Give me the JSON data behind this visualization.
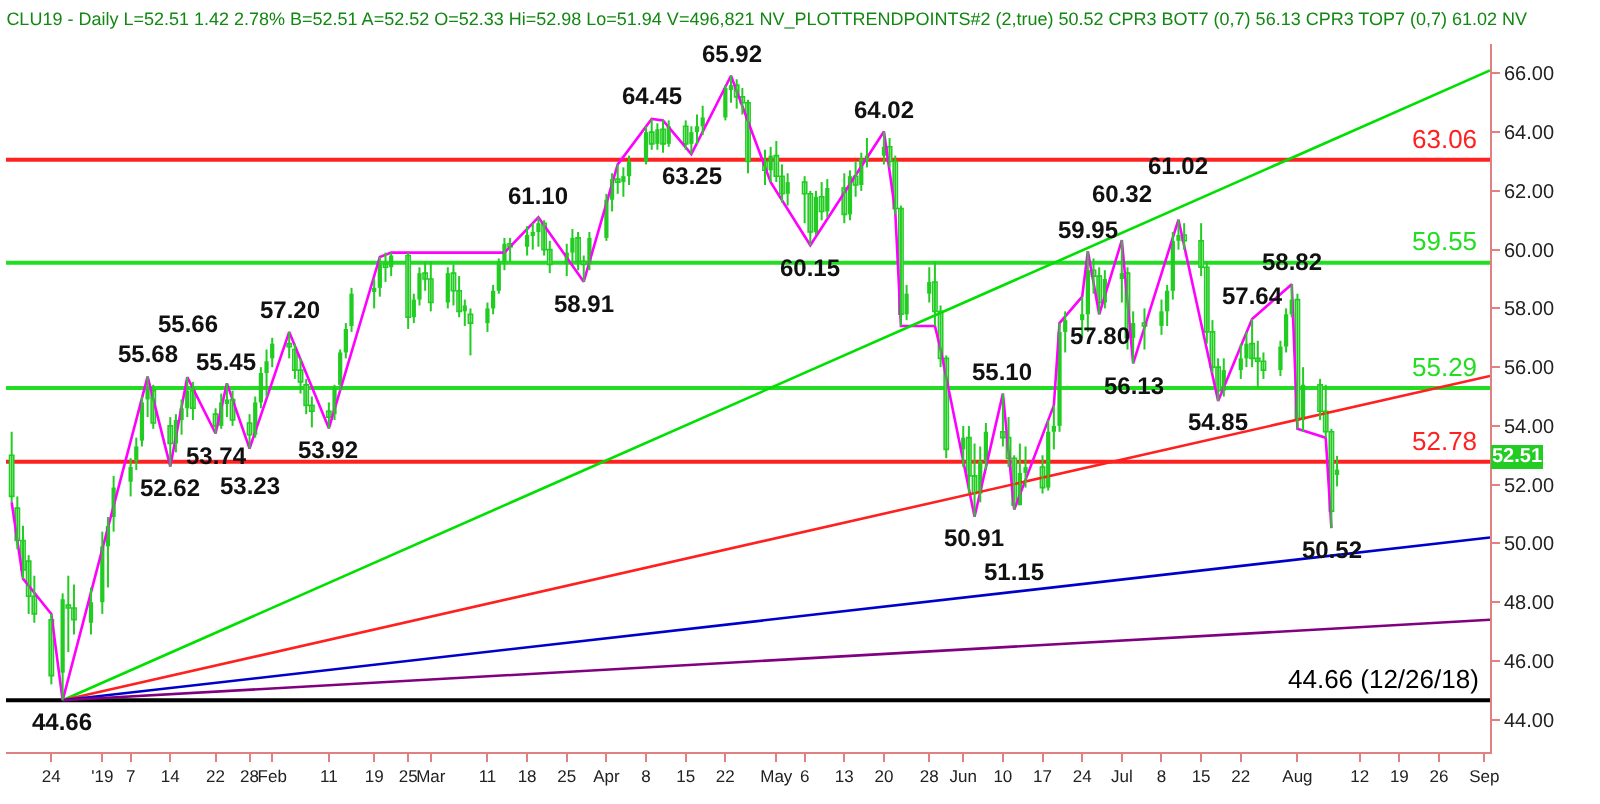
{
  "chart_data": {
    "type": "candlestick",
    "title": "CLU19 - Daily L=52.51 1.42 2.78% B=52.51 A=52.52 O=52.33 Hi=52.98 Lo=51.94 V=496,821 NV_PLOTTRENDPOINTS#2 (2,true) 50.52 CPR3 BOT7 (0,7) 56.13 CPR3 TOP7 (0,7) 61.02 NV",
    "color": "#22cc22",
    "x": [
      "2018-12-17",
      "2018-12-18",
      "2018-12-19",
      "2018-12-20",
      "2018-12-21",
      "2018-12-24",
      "2018-12-26",
      "2018-12-27",
      "2018-12-28",
      "2018-12-31",
      "2019-01-02",
      "2019-01-03",
      "2019-01-04",
      "2019-01-07",
      "2019-01-08",
      "2019-01-09",
      "2019-01-10",
      "2019-01-11",
      "2019-01-14",
      "2019-01-15",
      "2019-01-16",
      "2019-01-17",
      "2019-01-18",
      "2019-01-22",
      "2019-01-23",
      "2019-01-24",
      "2019-01-25",
      "2019-01-28",
      "2019-01-29",
      "2019-01-30",
      "2019-01-31",
      "2019-02-01",
      "2019-02-04",
      "2019-02-05",
      "2019-02-06",
      "2019-02-07",
      "2019-02-08",
      "2019-02-11",
      "2019-02-12",
      "2019-02-13",
      "2019-02-14",
      "2019-02-15",
      "2019-02-19",
      "2019-02-20",
      "2019-02-21",
      "2019-02-22",
      "2019-02-25",
      "2019-02-26",
      "2019-02-27",
      "2019-02-28",
      "2019-03-01",
      "2019-03-04",
      "2019-03-05",
      "2019-03-06",
      "2019-03-07",
      "2019-03-08",
      "2019-03-11",
      "2019-03-12",
      "2019-03-13",
      "2019-03-14",
      "2019-03-15",
      "2019-03-18",
      "2019-03-19",
      "2019-03-20",
      "2019-03-21",
      "2019-03-22",
      "2019-03-25",
      "2019-03-26",
      "2019-03-27",
      "2019-03-28",
      "2019-03-29",
      "2019-04-01",
      "2019-04-02",
      "2019-04-03",
      "2019-04-04",
      "2019-04-05",
      "2019-04-08",
      "2019-04-09",
      "2019-04-10",
      "2019-04-11",
      "2019-04-12",
      "2019-04-15",
      "2019-04-16",
      "2019-04-17",
      "2019-04-18",
      "2019-04-22",
      "2019-04-23",
      "2019-04-24",
      "2019-04-25",
      "2019-04-26",
      "2019-04-29",
      "2019-04-30",
      "2019-05-01",
      "2019-05-02",
      "2019-05-03",
      "2019-05-06",
      "2019-05-07",
      "2019-05-08",
      "2019-05-09",
      "2019-05-10",
      "2019-05-13",
      "2019-05-14",
      "2019-05-15",
      "2019-05-16",
      "2019-05-17",
      "2019-05-20",
      "2019-05-21",
      "2019-05-22",
      "2019-05-23",
      "2019-05-24",
      "2019-05-28",
      "2019-05-29",
      "2019-05-30",
      "2019-05-31",
      "2019-06-03",
      "2019-06-04",
      "2019-06-05",
      "2019-06-06",
      "2019-06-07",
      "2019-06-10",
      "2019-06-11",
      "2019-06-12",
      "2019-06-13",
      "2019-06-14",
      "2019-06-17",
      "2019-06-18",
      "2019-06-19",
      "2019-06-20",
      "2019-06-21",
      "2019-06-24",
      "2019-06-25",
      "2019-06-26",
      "2019-06-27",
      "2019-06-28",
      "2019-07-01",
      "2019-07-02",
      "2019-07-03",
      "2019-07-05",
      "2019-07-08",
      "2019-07-09",
      "2019-07-10",
      "2019-07-11",
      "2019-07-12",
      "2019-07-15",
      "2019-07-16",
      "2019-07-17",
      "2019-07-18",
      "2019-07-19",
      "2019-07-22",
      "2019-07-23",
      "2019-07-24",
      "2019-07-25",
      "2019-07-26",
      "2019-07-29",
      "2019-07-30",
      "2019-07-31",
      "2019-08-01",
      "2019-08-02",
      "2019-08-05",
      "2019-08-06",
      "2019-08-07",
      "2019-08-08"
    ],
    "ohlc": [
      [
        53.0,
        53.8,
        51.4,
        51.6
      ],
      [
        51.2,
        51.6,
        49.8,
        50.1
      ],
      [
        50.1,
        50.6,
        48.8,
        49.1
      ],
      [
        49.4,
        49.6,
        47.6,
        48.2
      ],
      [
        48.2,
        48.9,
        47.3,
        47.6
      ],
      [
        47.4,
        47.6,
        45.2,
        45.5
      ],
      [
        45.6,
        48.3,
        44.66,
        48.1
      ],
      [
        47.9,
        48.9,
        46.3,
        47.8
      ],
      [
        47.8,
        48.6,
        46.9,
        47.4
      ],
      [
        47.3,
        48.5,
        46.9,
        48.0
      ],
      [
        48.0,
        50.4,
        47.6,
        49.9
      ],
      [
        49.9,
        50.9,
        48.5,
        50.6
      ],
      [
        50.9,
        52.3,
        50.4,
        51.9
      ],
      [
        52.1,
        52.9,
        51.6,
        52.6
      ],
      [
        52.8,
        53.6,
        52.5,
        53.3
      ],
      [
        53.5,
        55.0,
        53.3,
        54.8
      ],
      [
        54.9,
        55.68,
        54.3,
        55.3
      ],
      [
        55.2,
        55.4,
        53.9,
        54.1
      ],
      [
        54.0,
        54.3,
        52.62,
        53.4
      ],
      [
        53.4,
        54.4,
        53.1,
        54.2
      ],
      [
        54.2,
        54.9,
        53.7,
        54.6
      ],
      [
        54.6,
        55.66,
        54.3,
        55.2
      ],
      [
        55.2,
        55.5,
        54.2,
        54.6
      ],
      [
        54.4,
        54.6,
        53.74,
        54.0
      ],
      [
        54.0,
        55.1,
        53.9,
        54.8
      ],
      [
        54.8,
        55.45,
        54.3,
        54.9
      ],
      [
        54.9,
        55.2,
        54.0,
        54.2
      ],
      [
        54.1,
        54.4,
        53.23,
        53.7
      ],
      [
        53.7,
        55.0,
        53.6,
        54.8
      ],
      [
        54.8,
        56.0,
        54.6,
        55.8
      ],
      [
        55.8,
        56.6,
        55.0,
        56.2
      ],
      [
        56.3,
        57.0,
        56.0,
        56.8
      ],
      [
        56.8,
        57.2,
        56.3,
        56.7
      ],
      [
        56.6,
        56.8,
        55.6,
        55.9
      ],
      [
        55.9,
        56.3,
        55.1,
        55.5
      ],
      [
        55.4,
        55.6,
        54.4,
        54.7
      ],
      [
        54.7,
        55.0,
        53.95,
        54.5
      ],
      [
        54.5,
        54.8,
        53.92,
        54.3
      ],
      [
        54.4,
        55.4,
        54.2,
        55.3
      ],
      [
        55.4,
        56.6,
        55.2,
        56.5
      ],
      [
        56.5,
        57.5,
        56.3,
        57.3
      ],
      [
        57.4,
        58.7,
        57.2,
        58.5
      ],
      [
        58.6,
        59.0,
        58.0,
        58.7
      ],
      [
        58.7,
        59.75,
        58.4,
        59.5
      ],
      [
        59.5,
        59.9,
        58.9,
        59.4
      ],
      [
        59.4,
        59.9,
        59.1,
        59.8
      ],
      [
        59.8,
        59.9,
        57.3,
        57.7
      ],
      [
        57.7,
        58.5,
        57.5,
        58.3
      ],
      [
        58.3,
        59.4,
        58.1,
        59.2
      ],
      [
        59.2,
        59.6,
        58.6,
        59.0
      ],
      [
        59.0,
        59.6,
        57.9,
        58.2
      ],
      [
        58.2,
        59.4,
        58.0,
        59.2
      ],
      [
        59.2,
        59.5,
        58.1,
        58.6
      ],
      [
        58.6,
        59.1,
        57.7,
        57.9
      ],
      [
        57.9,
        58.3,
        57.4,
        58.1
      ],
      [
        57.8,
        58.0,
        56.4,
        57.5
      ],
      [
        57.5,
        58.2,
        57.2,
        58.0
      ],
      [
        58.0,
        58.8,
        57.8,
        58.6
      ],
      [
        58.6,
        59.7,
        58.5,
        59.6
      ],
      [
        59.6,
        60.4,
        59.3,
        60.2
      ],
      [
        60.2,
        60.4,
        59.6,
        60.1
      ],
      [
        60.1,
        60.8,
        59.8,
        60.5
      ],
      [
        60.5,
        60.9,
        60.0,
        60.6
      ],
      [
        60.6,
        61.1,
        60.1,
        60.9
      ],
      [
        60.9,
        61.0,
        59.8,
        60.0
      ],
      [
        60.0,
        60.3,
        59.2,
        59.5
      ],
      [
        59.5,
        60.2,
        59.1,
        59.9
      ],
      [
        59.9,
        60.7,
        59.6,
        60.4
      ],
      [
        60.4,
        60.6,
        59.3,
        59.6
      ],
      [
        59.6,
        59.8,
        58.91,
        59.5
      ],
      [
        59.5,
        60.6,
        59.3,
        60.4
      ],
      [
        60.4,
        61.9,
        60.3,
        61.7
      ],
      [
        61.7,
        62.6,
        61.3,
        62.4
      ],
      [
        62.4,
        62.9,
        61.9,
        62.3
      ],
      [
        62.3,
        62.8,
        61.8,
        62.5
      ],
      [
        62.5,
        63.2,
        62.2,
        63.0
      ],
      [
        63.0,
        64.2,
        62.9,
        64.0
      ],
      [
        64.0,
        64.45,
        63.4,
        63.6
      ],
      [
        63.6,
        64.3,
        63.4,
        64.1
      ],
      [
        64.1,
        64.4,
        63.3,
        63.6
      ],
      [
        63.6,
        64.4,
        63.5,
        64.2
      ],
      [
        64.2,
        64.4,
        63.4,
        63.6
      ],
      [
        63.6,
        64.2,
        63.25,
        64.0
      ],
      [
        64.0,
        64.6,
        63.6,
        64.2
      ],
      [
        64.2,
        64.9,
        63.9,
        64.5
      ],
      [
        64.5,
        65.6,
        64.4,
        65.5
      ],
      [
        65.5,
        65.92,
        65.0,
        65.6
      ],
      [
        65.6,
        65.8,
        64.8,
        65.2
      ],
      [
        65.2,
        65.5,
        64.6,
        65.0
      ],
      [
        65.0,
        65.1,
        62.6,
        63.0
      ],
      [
        63.0,
        63.4,
        62.2,
        62.7
      ],
      [
        62.7,
        63.5,
        62.3,
        63.2
      ],
      [
        63.2,
        63.7,
        62.3,
        62.5
      ],
      [
        62.5,
        62.9,
        61.6,
        61.9
      ],
      [
        61.9,
        62.6,
        61.5,
        62.3
      ],
      [
        62.3,
        62.5,
        60.9,
        61.9
      ],
      [
        61.9,
        62.0,
        60.15,
        60.6
      ],
      [
        60.6,
        62.0,
        60.5,
        61.8
      ],
      [
        61.8,
        62.3,
        61.0,
        61.3
      ],
      [
        61.3,
        62.4,
        61.1,
        62.1
      ],
      [
        62.1,
        62.6,
        60.9,
        61.2
      ],
      [
        61.2,
        62.7,
        61.0,
        62.5
      ],
      [
        62.5,
        63.0,
        61.8,
        62.2
      ],
      [
        62.2,
        63.3,
        62.0,
        63.1
      ],
      [
        63.1,
        63.8,
        62.8,
        63.2
      ],
      [
        63.2,
        64.02,
        62.9,
        63.5
      ],
      [
        63.5,
        63.8,
        62.8,
        63.0
      ],
      [
        63.0,
        63.2,
        61.2,
        61.4
      ],
      [
        61.4,
        61.5,
        57.4,
        57.8
      ],
      [
        57.8,
        58.8,
        57.6,
        58.5
      ],
      [
        58.5,
        59.4,
        58.2,
        58.9
      ],
      [
        58.9,
        59.6,
        57.4,
        57.9
      ],
      [
        57.9,
        58.1,
        56.0,
        56.3
      ],
      [
        56.3,
        56.4,
        52.9,
        53.2
      ],
      [
        53.2,
        54.0,
        52.6,
        53.6
      ],
      [
        53.6,
        54.0,
        51.7,
        52.3
      ],
      [
        52.3,
        53.4,
        50.91,
        51.7
      ],
      [
        51.7,
        53.3,
        51.4,
        52.8
      ],
      [
        52.8,
        54.1,
        52.5,
        53.8
      ],
      [
        53.8,
        55.1,
        53.3,
        53.6
      ],
      [
        53.6,
        54.3,
        52.6,
        52.9
      ],
      [
        52.9,
        53.0,
        51.15,
        51.3
      ],
      [
        51.3,
        53.4,
        51.3,
        52.4
      ],
      [
        52.4,
        53.3,
        51.9,
        52.6
      ],
      [
        52.6,
        53.0,
        51.7,
        51.9
      ],
      [
        51.9,
        54.2,
        51.8,
        53.8
      ],
      [
        53.8,
        54.7,
        53.2,
        54.0
      ],
      [
        54.0,
        57.5,
        53.8,
        57.2
      ],
      [
        57.2,
        57.9,
        56.5,
        57.6
      ],
      [
        57.6,
        58.4,
        57.0,
        57.8
      ],
      [
        57.8,
        59.95,
        57.2,
        59.3
      ],
      [
        59.3,
        59.7,
        58.5,
        59.1
      ],
      [
        59.1,
        59.4,
        57.8,
        58.2
      ],
      [
        58.2,
        59.3,
        58.0,
        59.0
      ],
      [
        59.0,
        60.32,
        58.2,
        59.2
      ],
      [
        59.2,
        59.4,
        56.6,
        57.0
      ],
      [
        57.0,
        57.9,
        56.13,
        57.5
      ],
      [
        57.5,
        58.0,
        56.6,
        57.4
      ],
      [
        57.4,
        58.3,
        57.1,
        57.9
      ],
      [
        57.9,
        58.8,
        57.4,
        58.6
      ],
      [
        58.6,
        60.6,
        58.3,
        60.3
      ],
      [
        60.3,
        61.02,
        60.0,
        60.5
      ],
      [
        60.5,
        60.9,
        60.0,
        60.3
      ],
      [
        60.3,
        60.9,
        59.1,
        59.4
      ],
      [
        59.4,
        59.6,
        56.8,
        57.2
      ],
      [
        57.2,
        57.6,
        55.8,
        56.0
      ],
      [
        56.0,
        56.3,
        54.85,
        55.2
      ],
      [
        55.2,
        56.3,
        55.0,
        55.9
      ],
      [
        55.9,
        56.8,
        55.6,
        56.3
      ],
      [
        56.3,
        57.2,
        56.0,
        56.8
      ],
      [
        56.8,
        57.64,
        56.0,
        56.3
      ],
      [
        56.3,
        56.9,
        55.3,
        56.2
      ],
      [
        56.2,
        56.5,
        55.6,
        55.9
      ],
      [
        55.9,
        56.9,
        55.7,
        56.7
      ],
      [
        56.7,
        58.0,
        56.5,
        57.8
      ],
      [
        57.8,
        58.82,
        57.7,
        58.3
      ],
      [
        58.3,
        58.5,
        53.9,
        54.2
      ],
      [
        54.2,
        56.0,
        53.8,
        55.4
      ],
      [
        55.4,
        55.6,
        54.2,
        54.5
      ],
      [
        54.5,
        55.4,
        53.6,
        53.8
      ],
      [
        53.8,
        53.9,
        50.52,
        51.1
      ],
      [
        52.33,
        52.98,
        51.94,
        52.51
      ]
    ],
    "series": [
      {
        "type": "line",
        "color": "#ff00ff",
        "x": [
          "2018-12-17",
          "2018-12-19",
          "2018-12-24",
          "2018-12-26",
          "2019-01-10",
          "2019-01-14",
          "2019-01-17",
          "2019-01-22",
          "2019-01-24",
          "2019-01-28",
          "2019-02-04",
          "2019-02-11",
          "2019-02-20",
          "2019-02-22",
          "2019-03-14",
          "2019-03-20",
          "2019-03-28",
          "2019-04-03",
          "2019-04-09",
          "2019-04-11",
          "2019-04-16",
          "2019-04-23",
          "2019-04-30",
          "2019-05-07",
          "2019-05-20",
          "2019-05-22",
          "2019-05-23",
          "2019-05-29",
          "2019-05-30",
          "2019-06-05",
          "2019-06-10",
          "2019-06-12",
          "2019-06-19",
          "2019-06-20",
          "2019-06-24",
          "2019-06-25",
          "2019-06-27",
          "2019-07-01",
          "2019-07-03",
          "2019-07-11",
          "2019-07-18",
          "2019-07-24",
          "2019-07-31",
          "2019-08-01",
          "2019-08-06",
          "2019-08-07"
        ],
        "values": [
          51.4,
          48.8,
          47.6,
          44.66,
          55.68,
          52.62,
          55.66,
          53.74,
          55.45,
          53.23,
          57.2,
          53.92,
          59.75,
          59.9,
          59.9,
          61.1,
          58.91,
          62.9,
          64.45,
          64.4,
          63.25,
          65.92,
          62.3,
          60.15,
          64.02,
          61.3,
          57.4,
          57.4,
          56.6,
          50.91,
          55.1,
          51.15,
          54.7,
          57.5,
          58.4,
          59.95,
          57.8,
          60.32,
          56.13,
          61.02,
          54.85,
          57.64,
          58.82,
          53.9,
          53.6,
          50.52
        ]
      },
      {
        "type": "line",
        "color": "#00e000",
        "x": [
          "2018-12-26",
          "2019-09-04"
        ],
        "values": [
          44.66,
          66.1
        ]
      },
      {
        "type": "line",
        "color": "#ff2020",
        "x": [
          "2018-12-26",
          "2019-09-04"
        ],
        "values": [
          44.66,
          55.7
        ]
      },
      {
        "type": "line",
        "color": "#0000cc",
        "x": [
          "2018-12-26",
          "2019-09-04"
        ],
        "values": [
          44.66,
          50.2
        ]
      },
      {
        "type": "line",
        "color": "#800080",
        "x": [
          "2018-12-26",
          "2019-09-04"
        ],
        "values": [
          44.66,
          47.4
        ]
      }
    ],
    "ref_lines": [
      {
        "axis": "y",
        "value": 63.06,
        "label": "63.06",
        "color": "#ff2020"
      },
      {
        "axis": "y",
        "value": 59.55,
        "label": "59.55",
        "color": "#22dd22"
      },
      {
        "axis": "y",
        "value": 55.29,
        "label": "55.29",
        "color": "#22dd22"
      },
      {
        "axis": "y",
        "value": 52.78,
        "label": "52.78",
        "color": "#ff2020"
      },
      {
        "axis": "y",
        "value": 44.66,
        "label": "44.66 (12/26/18)",
        "color": "#000000"
      }
    ],
    "annotations": [
      {
        "text": "44.66",
        "x": "2018-12-26",
        "y": 44.66
      },
      {
        "text": "55.68",
        "x": "2019-01-10",
        "y": 55.68
      },
      {
        "text": "52.62",
        "x": "2019-01-14",
        "y": 52.62
      },
      {
        "text": "55.66",
        "x": "2019-01-17",
        "y": 55.66
      },
      {
        "text": "53.74",
        "x": "2019-01-22",
        "y": 53.74
      },
      {
        "text": "55.45",
        "x": "2019-01-24",
        "y": 55.45
      },
      {
        "text": "53.23",
        "x": "2019-01-28",
        "y": 53.23
      },
      {
        "text": "57.20",
        "x": "2019-02-04",
        "y": 57.2
      },
      {
        "text": "53.92",
        "x": "2019-02-11",
        "y": 53.92
      },
      {
        "text": "61.10",
        "x": "2019-03-20",
        "y": 61.1
      },
      {
        "text": "58.91",
        "x": "2019-03-28",
        "y": 58.91
      },
      {
        "text": "64.45",
        "x": "2019-04-09",
        "y": 64.45
      },
      {
        "text": "63.25",
        "x": "2019-04-16",
        "y": 63.25
      },
      {
        "text": "65.92",
        "x": "2019-04-23",
        "y": 65.92
      },
      {
        "text": "60.15",
        "x": "2019-05-07",
        "y": 60.15
      },
      {
        "text": "64.02",
        "x": "2019-05-20",
        "y": 64.02
      },
      {
        "text": "50.91",
        "x": "2019-06-05",
        "y": 50.91
      },
      {
        "text": "55.10",
        "x": "2019-06-10",
        "y": 55.1
      },
      {
        "text": "51.15",
        "x": "2019-06-12",
        "y": 51.15
      },
      {
        "text": "59.95",
        "x": "2019-06-25",
        "y": 59.95
      },
      {
        "text": "57.80",
        "x": "2019-06-27",
        "y": 57.8
      },
      {
        "text": "60.32",
        "x": "2019-07-01",
        "y": 60.32
      },
      {
        "text": "56.13",
        "x": "2019-07-03",
        "y": 56.13
      },
      {
        "text": "61.02",
        "x": "2019-07-11",
        "y": 61.02
      },
      {
        "text": "54.85",
        "x": "2019-07-18",
        "y": 54.85
      },
      {
        "text": "57.64",
        "x": "2019-07-24",
        "y": 57.64
      },
      {
        "text": "58.82",
        "x": "2019-07-31",
        "y": 58.82
      },
      {
        "text": "50.52",
        "x": "2019-08-07",
        "y": 50.52
      },
      "52.51"
    ],
    "xlim": [
      "2018-12-16",
      "2019-09-04"
    ],
    "xticks": [
      {
        "value": "2018-12-24",
        "label": "24"
      },
      {
        "value": "2019-01-02",
        "label": "'19"
      },
      {
        "value": "2019-01-07",
        "label": "7"
      },
      {
        "value": "2019-01-14",
        "label": "14"
      },
      {
        "value": "2019-01-22",
        "label": "22"
      },
      {
        "value": "2019-01-28",
        "label": "28"
      },
      {
        "value": "2019-02-01",
        "label": "Feb"
      },
      {
        "value": "2019-02-11",
        "label": "11"
      },
      {
        "value": "2019-02-19",
        "label": "19"
      },
      {
        "value": "2019-02-25",
        "label": "25"
      },
      {
        "value": "2019-03-01",
        "label": "Mar"
      },
      {
        "value": "2019-03-11",
        "label": "11"
      },
      {
        "value": "2019-03-18",
        "label": "18"
      },
      {
        "value": "2019-03-25",
        "label": "25"
      },
      {
        "value": "2019-04-01",
        "label": "Apr"
      },
      {
        "value": "2019-04-08",
        "label": "8"
      },
      {
        "value": "2019-04-15",
        "label": "15"
      },
      {
        "value": "2019-04-22",
        "label": "22"
      },
      {
        "value": "2019-05-01",
        "label": "May"
      },
      {
        "value": "2019-05-06",
        "label": "6"
      },
      {
        "value": "2019-05-13",
        "label": "13"
      },
      {
        "value": "2019-05-20",
        "label": "20"
      },
      {
        "value": "2019-05-28",
        "label": "28"
      },
      {
        "value": "2019-06-03",
        "label": "Jun"
      },
      {
        "value": "2019-06-10",
        "label": "10"
      },
      {
        "value": "2019-06-17",
        "label": "17"
      },
      {
        "value": "2019-06-24",
        "label": "24"
      },
      {
        "value": "2019-07-01",
        "label": "Jul"
      },
      {
        "value": "2019-07-08",
        "label": "8"
      },
      {
        "value": "2019-07-15",
        "label": "15"
      },
      {
        "value": "2019-07-22",
        "label": "22"
      },
      {
        "value": "2019-08-01",
        "label": "Aug"
      },
      {
        "value": "2019-08-12",
        "label": "12"
      },
      {
        "value": "2019-08-19",
        "label": "19"
      },
      {
        "value": "2019-08-26",
        "label": "26"
      },
      {
        "value": "2019-09-03",
        "label": "Sep"
      }
    ],
    "ylim": [
      42.9,
      67.0
    ],
    "yticks": [
      {
        "value": 44,
        "label": "44.00"
      },
      {
        "value": 46,
        "label": "46.00"
      },
      {
        "value": 48,
        "label": "48.00"
      },
      {
        "value": 50,
        "label": "50.00"
      },
      {
        "value": 52,
        "label": "52.00"
      },
      {
        "value": 54,
        "label": "54.00"
      },
      {
        "value": 56,
        "label": "56.00"
      },
      {
        "value": 58,
        "label": "58.00"
      },
      {
        "value": 60,
        "label": "60.00"
      },
      {
        "value": 62,
        "label": "62.00"
      },
      {
        "value": 64,
        "label": "64.00"
      },
      {
        "value": 66,
        "label": "66.00"
      }
    ]
  }
}
